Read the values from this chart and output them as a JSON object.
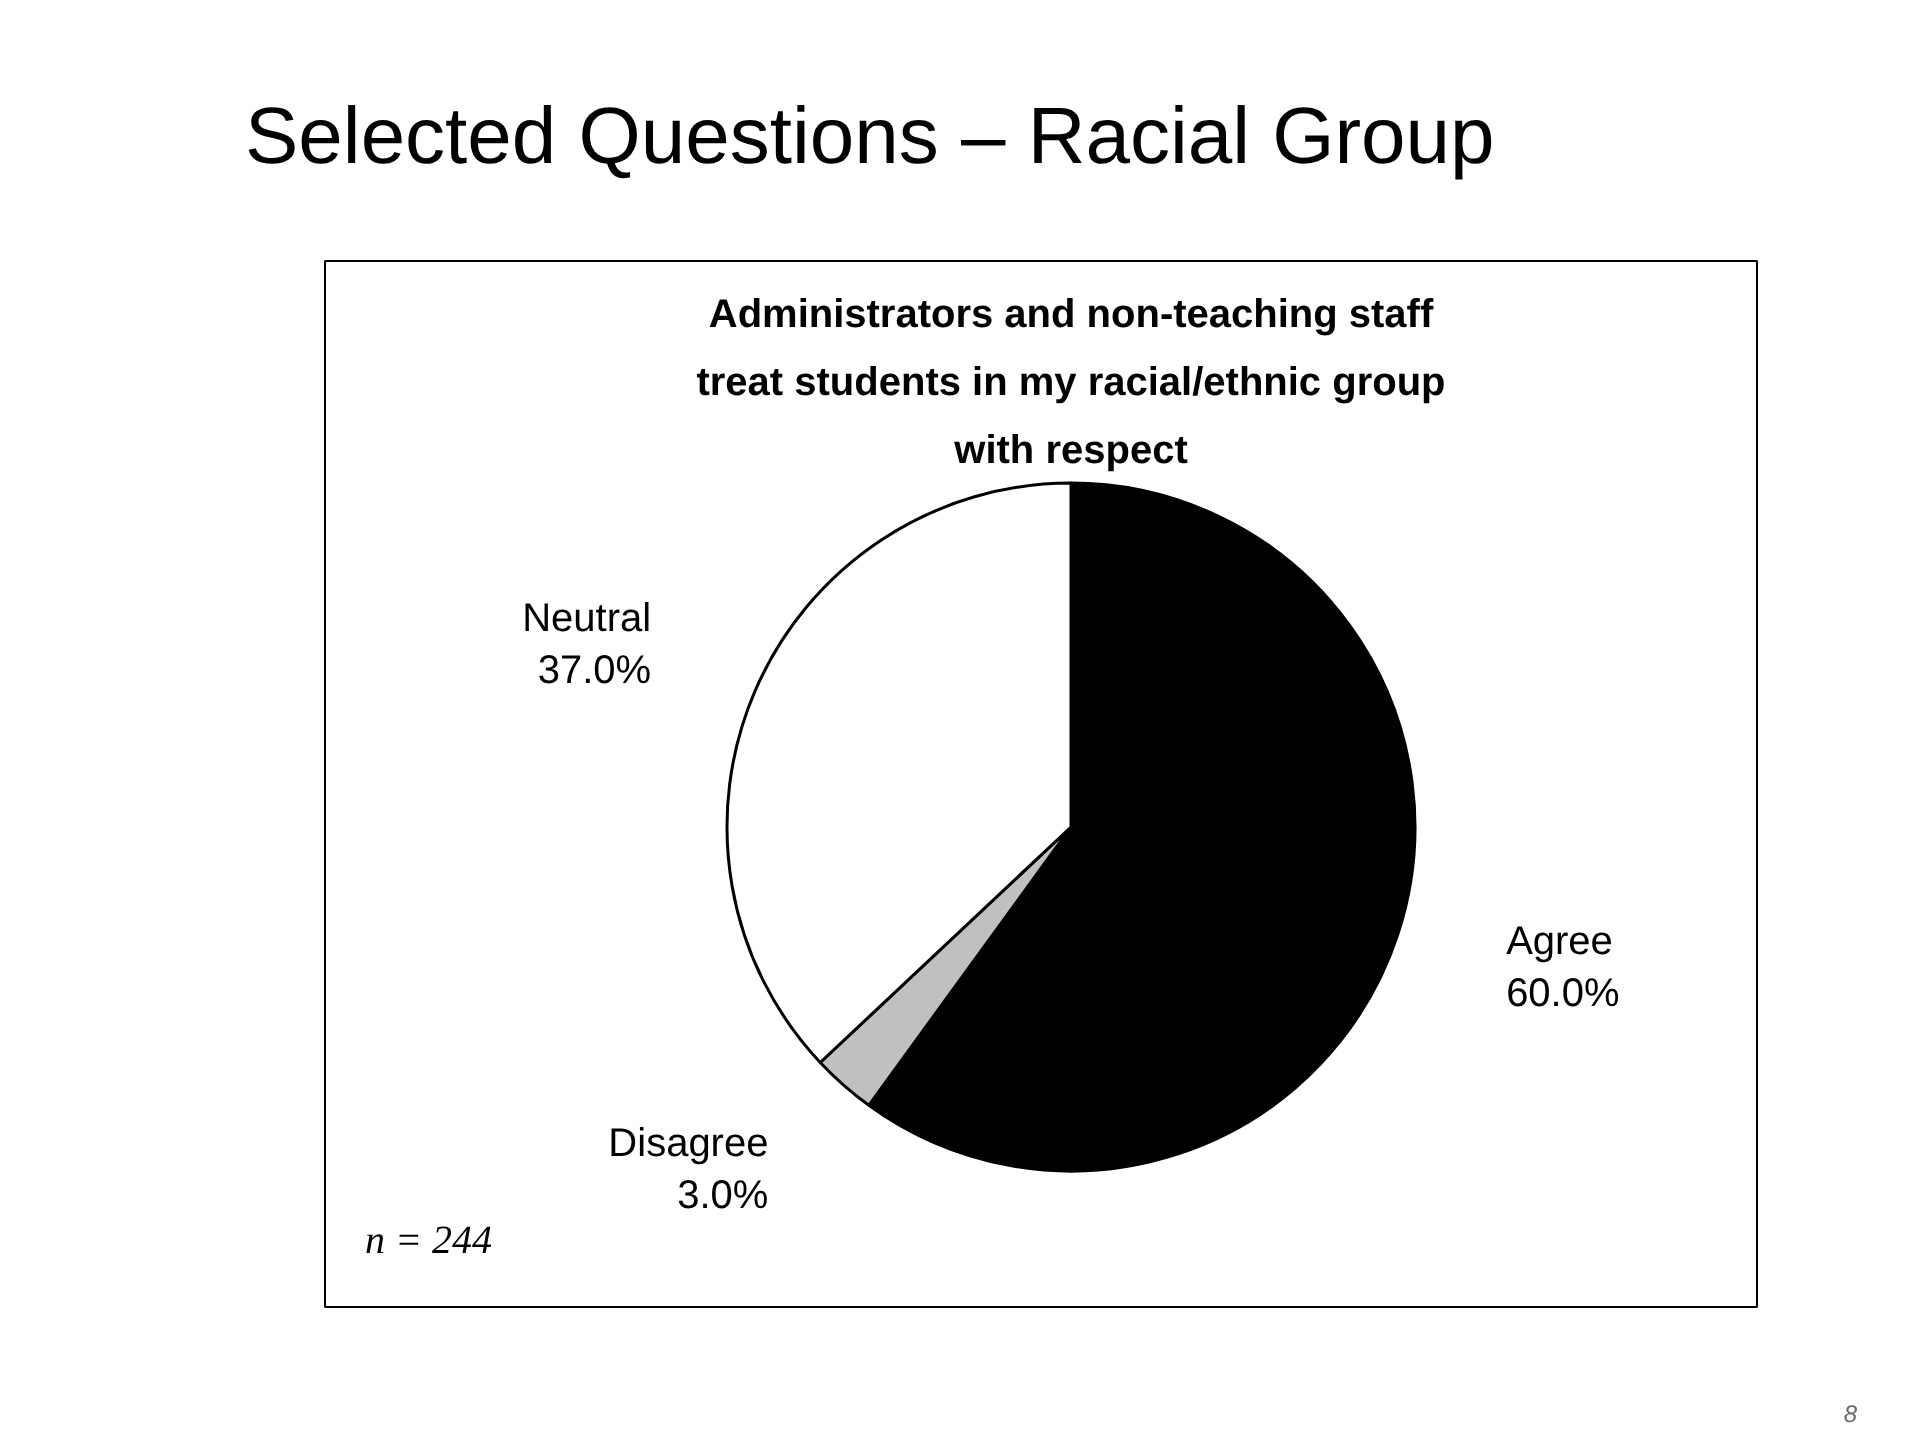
{
  "chart_data": {
    "type": "pie",
    "title": "Selected Questions – Racial Group",
    "subtitle": "Administrators and non-teaching staff treat students in my racial/ethnic group with respect",
    "categories": [
      "Agree",
      "Disagree",
      "Neutral"
    ],
    "values": [
      60.0,
      3.0,
      37.0
    ],
    "colors": [
      "#000000",
      "#c0c0c0",
      "#ffffff"
    ],
    "value_labels": [
      "60.0%",
      "3.0%",
      "37.0%"
    ],
    "annotations": [
      "n = 244",
      "8"
    ]
  }
}
